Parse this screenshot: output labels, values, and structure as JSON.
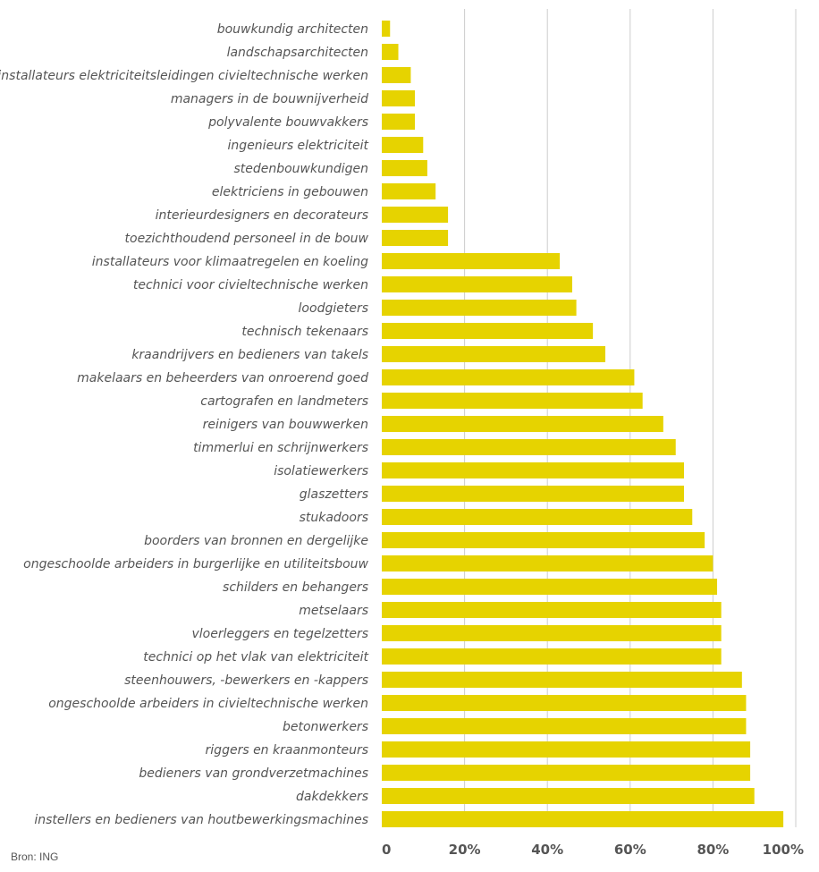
{
  "chart_data": {
    "type": "bar",
    "orientation": "horizontal",
    "categories": [
      "bouwkundig architecten",
      "landschapsarchitecten",
      "installateurs elektriciteitsleidingen civieltechnische werken",
      "managers in de bouwnijverheid",
      "polyvalente bouwvakkers",
      "ingenieurs elektriciteit",
      "stedenbouwkundigen",
      "elektriciens in gebouwen",
      "interieurdesigners en decorateurs",
      "toezichthoudend personeel in de bouw",
      "installateurs voor klimaatregelen en koeling",
      "technici voor civieltechnische werken",
      "loodgieters",
      "technisch tekenaars",
      "kraandrijvers en bedieners van takels",
      "makelaars en beheerders van onroerend goed",
      "cartografen en landmeters",
      "reinigers van bouwwerken",
      "timmerlui en schrijnwerkers",
      "isolatiewerkers",
      "glaszetters",
      "stukadoors",
      "boorders van bronnen en dergelijke",
      "ongeschoolde arbeiders in burgerlijke en utiliteitsbouw",
      "schilders en behangers",
      "metselaars",
      "vloerleggers en tegelzetters",
      "technici op het vlak van elektriciteit",
      "steenhouwers, -bewerkers en -kappers",
      "ongeschoolde arbeiders in civieltechnische werken",
      "betonwerkers",
      "riggers en kraanmonteurs",
      "bedieners van grondverzetmachines",
      "dakdekkers",
      "instellers en bedieners van houtbewerkingsmachines"
    ],
    "values": [
      2,
      4,
      7,
      8,
      8,
      10,
      11,
      13,
      16,
      16,
      43,
      46,
      47,
      51,
      54,
      61,
      63,
      68,
      71,
      73,
      73,
      75,
      78,
      80,
      81,
      82,
      82,
      82,
      87,
      88,
      88,
      89,
      89,
      90,
      97
    ],
    "xlim": [
      0,
      100
    ],
    "xticks": [
      "0",
      "20%",
      "40%",
      "60%",
      "80%",
      "100%"
    ],
    "xtick_values": [
      0,
      20,
      40,
      60,
      80,
      100
    ],
    "grid": true,
    "bar_color": "#e6d300",
    "grid_color": "#cccccc",
    "text_color": "#555555"
  },
  "source_text": "Bron: ING"
}
